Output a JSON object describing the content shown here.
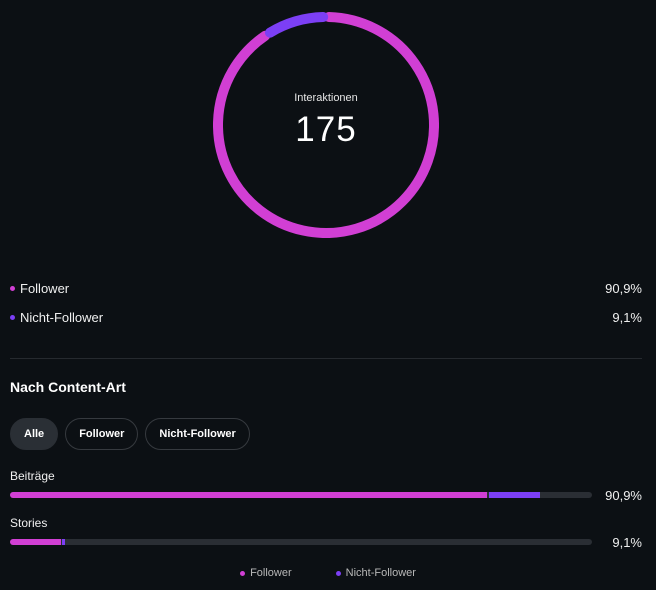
{
  "colors": {
    "follower": "#d13fd4",
    "non_follower": "#7c3ff5",
    "track": "#2a2e34"
  },
  "donut": {
    "label": "Interaktionen",
    "value": "175",
    "follower_pct": 90.9,
    "non_follower_pct": 9.1
  },
  "legend": [
    {
      "label": "Follower",
      "value": "90,9%"
    },
    {
      "label": "Nicht-Follower",
      "value": "9,1%"
    }
  ],
  "section": {
    "title": "Nach Content-Art",
    "filters": [
      "Alle",
      "Follower",
      "Nicht-Follower"
    ],
    "active_filter": "Alle"
  },
  "content_types": [
    {
      "label": "Beiträge",
      "value": "90,9%",
      "follower_fraction": 0.82,
      "non_follower_fraction": 0.087
    },
    {
      "label": "Stories",
      "value": "9,1%",
      "follower_fraction": 0.087,
      "non_follower_fraction": 0.006
    }
  ],
  "bottom_legend": [
    "Follower",
    "Nicht-Follower"
  ]
}
